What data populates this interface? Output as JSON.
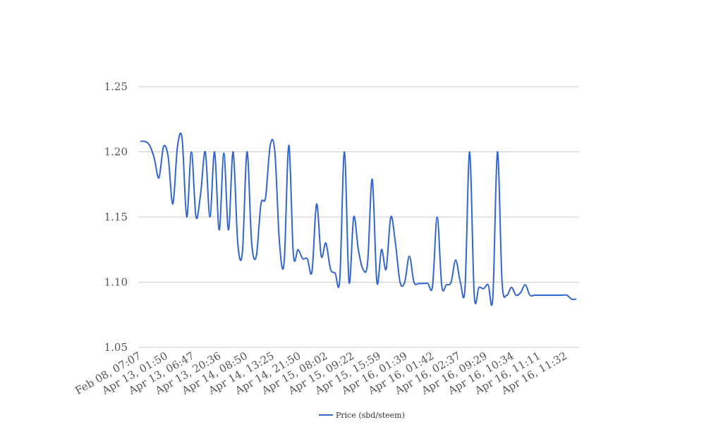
{
  "chart_data": {
    "type": "line",
    "title": "",
    "xlabel": "",
    "ylabel": "",
    "ylim": [
      1.05,
      1.25
    ],
    "y_ticks": [
      "1.05",
      "1.10",
      "1.15",
      "1.20",
      "1.25"
    ],
    "grid": true,
    "legend_position": "bottom",
    "x_tick_labels": [
      "Feb 08, 07:07",
      "Apr 13, 01:50",
      "Apr 13, 06:47",
      "Apr 13, 20:36",
      "Apr 14, 08:50",
      "Apr 14, 13:25",
      "Apr 14, 21:50",
      "Apr 15, 08:02",
      "Apr 15, 09:22",
      "Apr 15, 15:59",
      "Apr 16, 01:39",
      "Apr 16, 01:42",
      "Apr 16, 02:37",
      "Apr 16, 09:29",
      "Apr 16, 10:34",
      "Apr 16, 11:11",
      "Apr 16, 11:32"
    ],
    "series": [
      {
        "name": "Price (sbd/steem)",
        "color": "#3366cc",
        "values": [
          1.208,
          1.208,
          1.205,
          1.195,
          1.18,
          1.204,
          1.196,
          1.16,
          1.204,
          1.21,
          1.15,
          1.2,
          1.15,
          1.168,
          1.2,
          1.15,
          1.2,
          1.14,
          1.199,
          1.14,
          1.2,
          1.13,
          1.123,
          1.2,
          1.13,
          1.12,
          1.16,
          1.165,
          1.205,
          1.2,
          1.13,
          1.115,
          1.205,
          1.121,
          1.125,
          1.118,
          1.118,
          1.108,
          1.16,
          1.12,
          1.13,
          1.11,
          1.107,
          1.102,
          1.2,
          1.1,
          1.15,
          1.125,
          1.11,
          1.115,
          1.179,
          1.1,
          1.125,
          1.11,
          1.15,
          1.13,
          1.1,
          1.1,
          1.12,
          1.1,
          1.099,
          1.099,
          1.099,
          1.097,
          1.15,
          1.097,
          1.098,
          1.1,
          1.117,
          1.1,
          1.095,
          1.2,
          1.09,
          1.096,
          1.095,
          1.098,
          1.088,
          1.2,
          1.1,
          1.09,
          1.096,
          1.09,
          1.092,
          1.098,
          1.09,
          1.09,
          1.09,
          1.09,
          1.09,
          1.09,
          1.09,
          1.09,
          1.09,
          1.087,
          1.087
        ]
      }
    ]
  }
}
